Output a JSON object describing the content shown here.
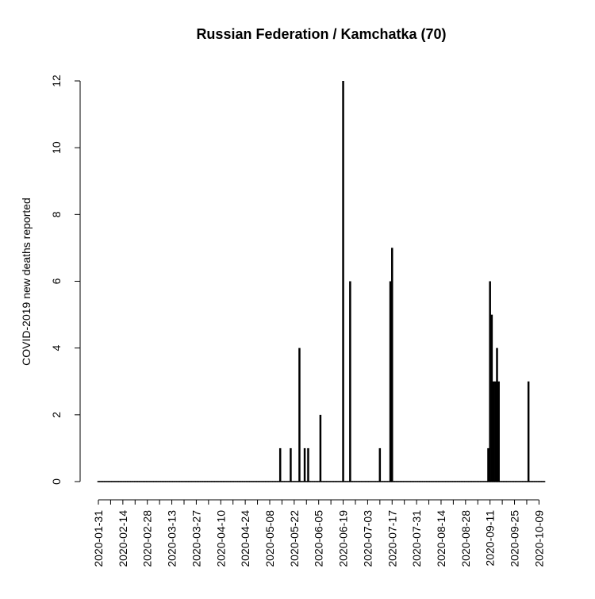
{
  "chart_data": {
    "type": "bar",
    "title": "Russian Federation / Kamchatka (70)",
    "xlabel": "",
    "ylabel": "COVID-2019 new deaths reported",
    "ylim": [
      0,
      12
    ],
    "y_ticks": [
      0,
      2,
      4,
      6,
      8,
      10,
      12
    ],
    "x_range": [
      "2020-01-31",
      "2020-10-12"
    ],
    "x_tick_labels": [
      "2020-01-31",
      "2020-02-14",
      "2020-02-28",
      "2020-03-13",
      "2020-03-27",
      "2020-04-10",
      "2020-04-24",
      "2020-05-08",
      "2020-05-22",
      "2020-06-05",
      "2020-06-19",
      "2020-07-03",
      "2020-07-17",
      "2020-07-31",
      "2020-08-14",
      "2020-08-28",
      "2020-09-11",
      "2020-09-25",
      "2020-10-09"
    ],
    "series": [
      {
        "x": [
          "2020-05-14",
          "2020-05-20",
          "2020-05-25",
          "2020-05-28",
          "2020-05-30",
          "2020-06-06",
          "2020-06-19",
          "2020-06-23",
          "2020-07-10",
          "2020-07-16",
          "2020-07-17",
          "2020-09-10",
          "2020-09-11",
          "2020-09-12",
          "2020-09-13",
          "2020-09-14",
          "2020-09-15",
          "2020-09-16",
          "2020-10-03"
        ],
        "values": [
          1,
          1,
          4,
          1,
          1,
          2,
          12,
          6,
          1,
          6,
          7,
          1,
          6,
          5,
          3,
          3,
          4,
          3,
          3
        ]
      }
    ],
    "grid": false,
    "color": "#000000"
  }
}
